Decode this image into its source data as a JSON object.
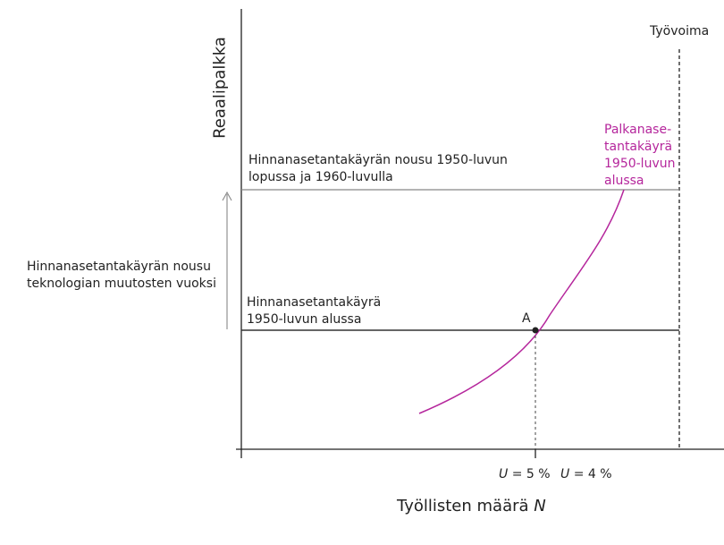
{
  "diagram": {
    "y_axis_label": "Reaalipalkka",
    "x_axis_label": "Työllisten määrä",
    "x_axis_variable": "N",
    "labor_force_label": "Työvoima",
    "wage_setting_curve_label": [
      "Palkanase-",
      "tantakäyrä",
      "1950-luvun",
      "alussa"
    ],
    "price_setting_high_label": [
      "Hinnanasetantakäyrän nousu 1950-luvun",
      "lopussa ja 1960-luvulla"
    ],
    "price_setting_low_label": [
      "Hinnanasetantakäyrä",
      "1950-luvun alussa"
    ],
    "shift_annotation": [
      "Hinnanasetantakäyrän nousu",
      "teknologian muutosten vuoksi"
    ],
    "point_label": "A",
    "unemployment_labels": [
      {
        "var": "U",
        "text": " = 5 %"
      },
      {
        "var": "U",
        "text": " = 4 %"
      }
    ],
    "colors": {
      "axis": "#222222",
      "wage_curve": "#b5269c",
      "price_high": "#888888",
      "price_low": "#333333",
      "arrow": "#888888"
    }
  }
}
